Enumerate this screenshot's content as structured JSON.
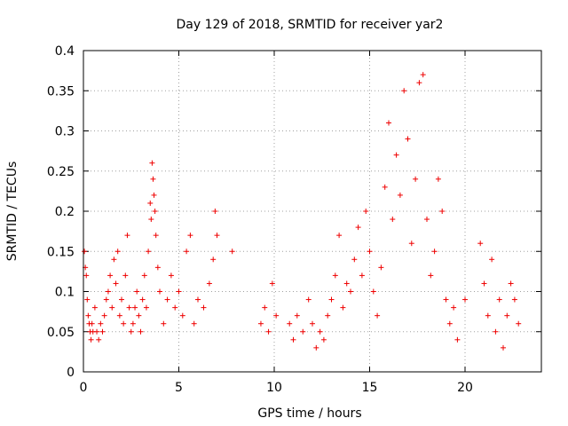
{
  "chart_data": {
    "type": "scatter",
    "title": "Day 129 of 2018, SRMTID for receiver yar2",
    "xlabel": "GPS time / hours",
    "ylabel": "SRMTID / TECUs",
    "xlim": [
      0,
      24
    ],
    "ylim": [
      0,
      0.4
    ],
    "xticks": [
      0,
      5,
      10,
      15,
      20
    ],
    "yticks": [
      0,
      0.05,
      0.1,
      0.15,
      0.2,
      0.25,
      0.3,
      0.35,
      0.4
    ],
    "xtick_labels": [
      "0",
      "5",
      "10",
      "15",
      "20"
    ],
    "ytick_labels": [
      "0",
      "0.05",
      "0.1",
      "0.15",
      "0.2",
      "0.25",
      "0.3",
      "0.35",
      "0.4"
    ],
    "grid": true,
    "marker": "+",
    "color": "#ee0000",
    "series": [
      {
        "name": "SRMTID",
        "points": [
          [
            0.05,
            0.15
          ],
          [
            0.1,
            0.13
          ],
          [
            0.15,
            0.12
          ],
          [
            0.2,
            0.09
          ],
          [
            0.25,
            0.07
          ],
          [
            0.3,
            0.06
          ],
          [
            0.35,
            0.05
          ],
          [
            0.4,
            0.04
          ],
          [
            0.45,
            0.06
          ],
          [
            0.5,
            0.05
          ],
          [
            0.6,
            0.08
          ],
          [
            0.7,
            0.05
          ],
          [
            0.8,
            0.04
          ],
          [
            0.9,
            0.06
          ],
          [
            1.0,
            0.05
          ],
          [
            1.1,
            0.07
          ],
          [
            1.2,
            0.09
          ],
          [
            1.3,
            0.1
          ],
          [
            1.4,
            0.12
          ],
          [
            1.5,
            0.08
          ],
          [
            1.6,
            0.14
          ],
          [
            1.7,
            0.11
          ],
          [
            1.8,
            0.15
          ],
          [
            1.9,
            0.07
          ],
          [
            2.0,
            0.09
          ],
          [
            2.1,
            0.06
          ],
          [
            2.2,
            0.12
          ],
          [
            2.3,
            0.17
          ],
          [
            2.4,
            0.08
          ],
          [
            2.5,
            0.05
          ],
          [
            2.6,
            0.06
          ],
          [
            2.7,
            0.08
          ],
          [
            2.8,
            0.1
          ],
          [
            2.9,
            0.07
          ],
          [
            3.0,
            0.05
          ],
          [
            3.1,
            0.09
          ],
          [
            3.2,
            0.12
          ],
          [
            3.3,
            0.08
          ],
          [
            3.4,
            0.15
          ],
          [
            3.5,
            0.21
          ],
          [
            3.55,
            0.19
          ],
          [
            3.6,
            0.26
          ],
          [
            3.65,
            0.24
          ],
          [
            3.7,
            0.22
          ],
          [
            3.75,
            0.2
          ],
          [
            3.8,
            0.17
          ],
          [
            3.9,
            0.13
          ],
          [
            4.0,
            0.1
          ],
          [
            4.2,
            0.06
          ],
          [
            4.4,
            0.09
          ],
          [
            4.6,
            0.12
          ],
          [
            4.8,
            0.08
          ],
          [
            5.0,
            0.1
          ],
          [
            5.2,
            0.07
          ],
          [
            5.4,
            0.15
          ],
          [
            5.6,
            0.17
          ],
          [
            5.8,
            0.06
          ],
          [
            6.0,
            0.09
          ],
          [
            6.3,
            0.08
          ],
          [
            6.6,
            0.11
          ],
          [
            6.8,
            0.14
          ],
          [
            6.9,
            0.2
          ],
          [
            7.0,
            0.17
          ],
          [
            7.8,
            0.15
          ],
          [
            9.3,
            0.06
          ],
          [
            9.5,
            0.08
          ],
          [
            9.7,
            0.05
          ],
          [
            9.9,
            0.11
          ],
          [
            10.1,
            0.07
          ],
          [
            10.8,
            0.06
          ],
          [
            11.0,
            0.04
          ],
          [
            11.2,
            0.07
          ],
          [
            11.5,
            0.05
          ],
          [
            11.8,
            0.09
          ],
          [
            12.0,
            0.06
          ],
          [
            12.2,
            0.03
          ],
          [
            12.4,
            0.05
          ],
          [
            12.6,
            0.04
          ],
          [
            12.8,
            0.07
          ],
          [
            13.0,
            0.09
          ],
          [
            13.2,
            0.12
          ],
          [
            13.4,
            0.17
          ],
          [
            13.6,
            0.08
          ],
          [
            13.8,
            0.11
          ],
          [
            14.0,
            0.1
          ],
          [
            14.2,
            0.14
          ],
          [
            14.4,
            0.18
          ],
          [
            14.6,
            0.12
          ],
          [
            14.8,
            0.2
          ],
          [
            15.0,
            0.15
          ],
          [
            15.2,
            0.1
          ],
          [
            15.4,
            0.07
          ],
          [
            15.6,
            0.13
          ],
          [
            15.8,
            0.23
          ],
          [
            16.0,
            0.31
          ],
          [
            16.2,
            0.19
          ],
          [
            16.4,
            0.27
          ],
          [
            16.6,
            0.22
          ],
          [
            16.8,
            0.35
          ],
          [
            17.0,
            0.29
          ],
          [
            17.2,
            0.16
          ],
          [
            17.4,
            0.24
          ],
          [
            17.6,
            0.36
          ],
          [
            17.8,
            0.37
          ],
          [
            18.0,
            0.19
          ],
          [
            18.2,
            0.12
          ],
          [
            18.4,
            0.15
          ],
          [
            18.6,
            0.24
          ],
          [
            18.8,
            0.2
          ],
          [
            19.0,
            0.09
          ],
          [
            19.2,
            0.06
          ],
          [
            19.4,
            0.08
          ],
          [
            19.6,
            0.04
          ],
          [
            20.0,
            0.09
          ],
          [
            20.8,
            0.16
          ],
          [
            21.0,
            0.11
          ],
          [
            21.2,
            0.07
          ],
          [
            21.4,
            0.14
          ],
          [
            21.6,
            0.05
          ],
          [
            21.8,
            0.09
          ],
          [
            22.0,
            0.03
          ],
          [
            22.2,
            0.07
          ],
          [
            22.4,
            0.11
          ],
          [
            22.6,
            0.09
          ],
          [
            22.8,
            0.06
          ]
        ]
      }
    ]
  }
}
